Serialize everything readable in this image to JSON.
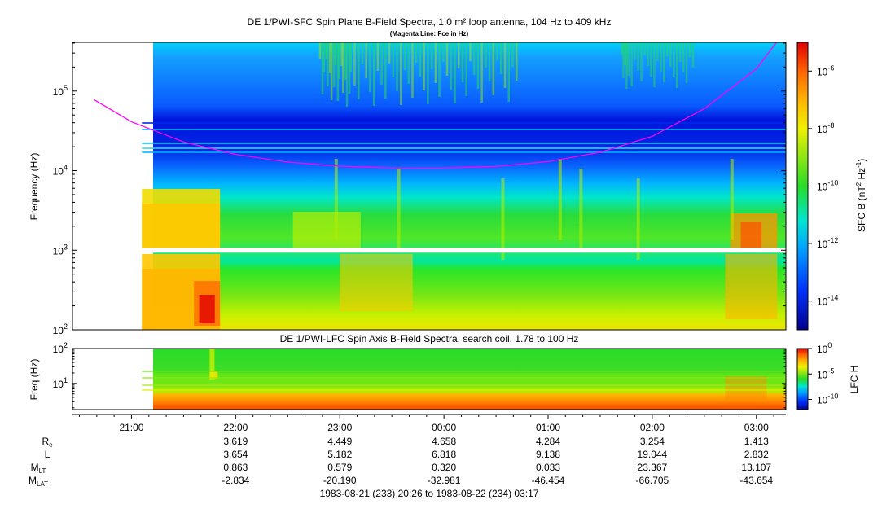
{
  "chart_data": [
    {
      "type": "heatmap",
      "title": "DE 1/PWI-SFC  Spin Plane B-Field Spectra, 1.0 m² loop antenna, 104 Hz to 409 kHz",
      "subtitle": "(Magenta Line: Fce in Hz)",
      "ylabel": "Frequency (Hz)",
      "yscale": "log",
      "ylim": [
        100,
        409000
      ],
      "yticks": [
        {
          "base": "10",
          "exp": "2",
          "value": 100
        },
        {
          "base": "10",
          "exp": "3",
          "value": 1000
        },
        {
          "base": "10",
          "exp": "4",
          "value": 10000
        },
        {
          "base": "10",
          "exp": "5",
          "value": 100000
        }
      ],
      "data_gap_frequency_hz": 1000,
      "overlay_line": {
        "color": "#ff00ff",
        "x_hours": [
          20.64,
          21.0,
          21.5,
          22.0,
          22.5,
          23.0,
          23.5,
          24.0,
          24.5,
          25.0,
          25.5,
          26.0,
          26.5,
          27.0,
          27.2
        ],
        "fce_hz": [
          78000,
          41000,
          23000,
          16000,
          12800,
          11400,
          10800,
          10800,
          11300,
          13000,
          17000,
          27000,
          60000,
          190000,
          420000
        ]
      },
      "colorbar": {
        "label_main": "SFC B (nT",
        "label_sup1": "2",
        "label_mid": " Hz",
        "label_sup2": "-1",
        "label_end": ")",
        "scale": "log",
        "range_exp": [
          -15,
          -5
        ],
        "ticks": [
          {
            "base": "10",
            "exp": "-6",
            "value": -6
          },
          {
            "base": "10",
            "exp": "-8",
            "value": -8
          },
          {
            "base": "10",
            "exp": "-10",
            "value": -10
          },
          {
            "base": "10",
            "exp": "-12",
            "value": -12
          },
          {
            "base": "10",
            "exp": "-14",
            "value": -14
          }
        ]
      }
    },
    {
      "type": "heatmap",
      "title": "DE 1/PWI-LFC  Spin Axis B-Field Spectra, search coil, 1.78 to 100 Hz",
      "ylabel": "Freq (Hz)",
      "yscale": "log",
      "ylim": [
        1.78,
        100
      ],
      "yticks": [
        {
          "base": "10",
          "exp": "1",
          "value": 10
        },
        {
          "base": "10",
          "exp": "2",
          "value": 100
        }
      ],
      "colorbar": {
        "label": "LFC H",
        "scale": "log",
        "range_exp": [
          -12,
          0
        ],
        "ticks": [
          {
            "base": "10",
            "exp": "0",
            "value": 0
          },
          {
            "base": "10",
            "exp": "-5",
            "value": -5
          },
          {
            "base": "10",
            "exp": "-10",
            "value": -10
          }
        ]
      }
    }
  ],
  "time_axis": {
    "start_hour": 20.4333,
    "end_hour": 27.2833,
    "data_start_hour": 21.1,
    "ticks": [
      {
        "label": "21:00",
        "hour": 21
      },
      {
        "label": "22:00",
        "hour": 22
      },
      {
        "label": "23:00",
        "hour": 23
      },
      {
        "label": "00:00",
        "hour": 24
      },
      {
        "label": "01:00",
        "hour": 25
      },
      {
        "label": "02:00",
        "hour": 26
      },
      {
        "label": "03:00",
        "hour": 27
      }
    ],
    "range_label": "1983-08-21 (233) 20:26 to 1983-08-22 (234) 03:17"
  },
  "ephemeris": {
    "rows": [
      {
        "name": "R",
        "sub": "e",
        "values": [
          "3.619",
          "4.449",
          "4.658",
          "4.284",
          "3.254",
          "1.413"
        ]
      },
      {
        "name": "L",
        "sub": "",
        "values": [
          "3.654",
          "5.182",
          "6.818",
          "9.138",
          "19.044",
          "2.832"
        ]
      },
      {
        "name": "M",
        "sub": "LT",
        "values": [
          "0.863",
          "0.579",
          "0.320",
          "0.033",
          "23.367",
          "13.107"
        ]
      },
      {
        "name": "M",
        "sub": "LAT",
        "values": [
          "-2.834",
          "-20.190",
          "-32.981",
          "-46.454",
          "-66.705",
          "-43.654"
        ]
      }
    ]
  }
}
